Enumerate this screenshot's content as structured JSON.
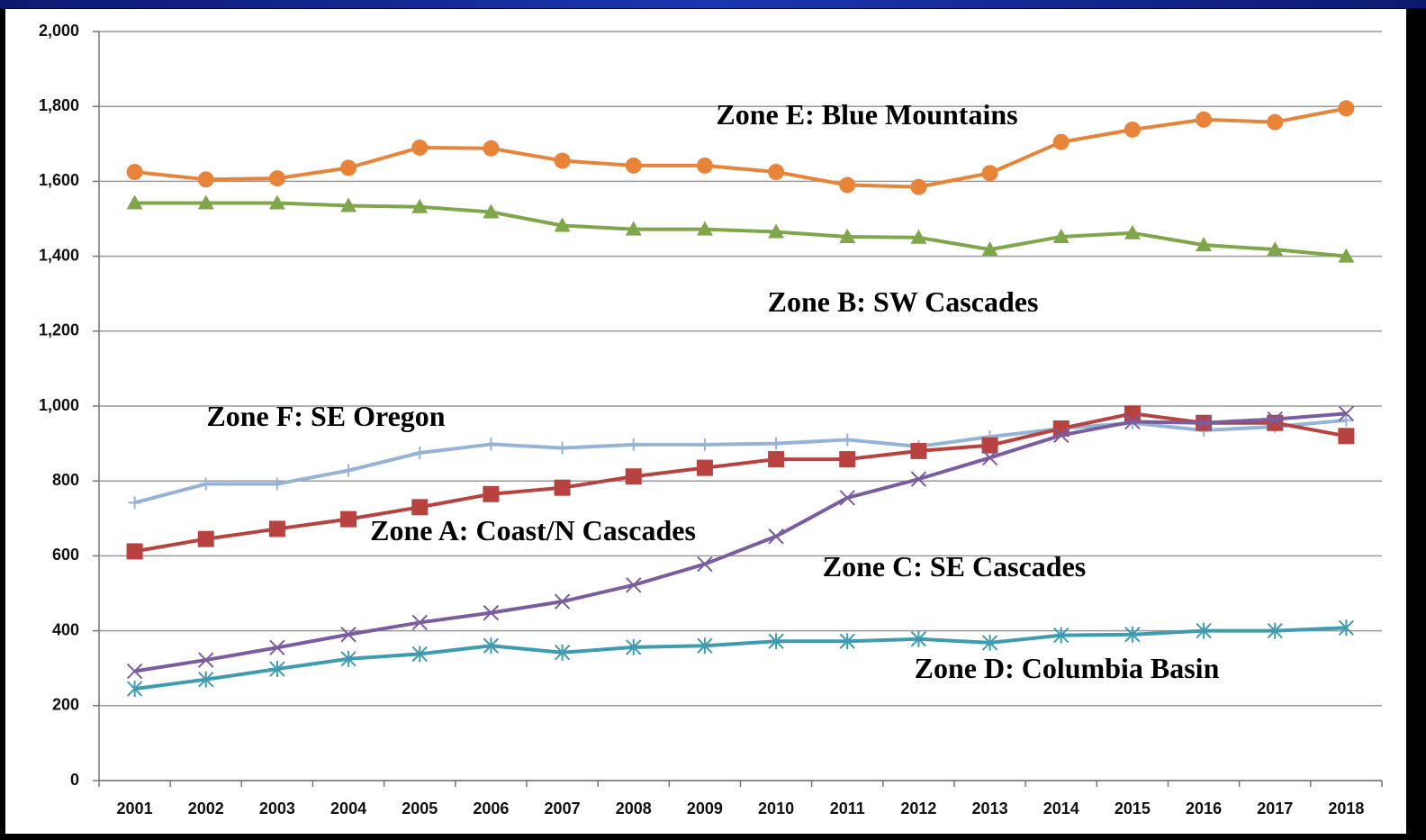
{
  "chart_data": {
    "type": "line",
    "categories": [
      "2001",
      "2002",
      "2003",
      "2004",
      "2005",
      "2006",
      "2007",
      "2008",
      "2009",
      "2010",
      "2011",
      "2012",
      "2013",
      "2014",
      "2015",
      "2016",
      "2017",
      "2018"
    ],
    "ylim": [
      0,
      2000
    ],
    "yticks": [
      0,
      200,
      400,
      600,
      800,
      {
        "value": 1000,
        "label": "1,000"
      },
      {
        "value": 1200,
        "label": "1,200"
      },
      {
        "value": 1400,
        "label": "1,400"
      },
      {
        "value": 1600,
        "label": "1,600"
      },
      {
        "value": 1800,
        "label": "1,800"
      },
      {
        "value": 2000,
        "label": "2,000"
      }
    ],
    "grid": true,
    "series": [
      {
        "name": "Zone E: Blue Mountains",
        "color": "#e8843a",
        "marker": "circle",
        "values": [
          1625,
          1605,
          1608,
          1636,
          1690,
          1688,
          1655,
          1642,
          1642,
          1625,
          1590,
          1585,
          1622,
          1705,
          1738,
          1765,
          1758,
          1795
        ]
      },
      {
        "name": "Zone B: SW Cascades",
        "color": "#7fa64a",
        "marker": "triangle",
        "values": [
          1542,
          1542,
          1542,
          1535,
          1532,
          1518,
          1482,
          1472,
          1472,
          1465,
          1452,
          1450,
          1418,
          1452,
          1462,
          1430,
          1418,
          1400
        ]
      },
      {
        "name": "Zone F: SE Oregon",
        "color": "#95b3d7",
        "marker": "plus",
        "values": [
          742,
          792,
          792,
          828,
          875,
          898,
          888,
          897,
          897,
          900,
          910,
          892,
          918,
          940,
          955,
          935,
          945,
          962
        ]
      },
      {
        "name": "Zone A: Coast/N Cascades",
        "color": "#b8423f",
        "marker": "square",
        "values": [
          612,
          645,
          672,
          698,
          730,
          765,
          782,
          812,
          835,
          858,
          858,
          880,
          895,
          940,
          980,
          955,
          955,
          920
        ]
      },
      {
        "name": "Zone C: SE Cascades",
        "color": "#7a5d9e",
        "marker": "x",
        "values": [
          292,
          322,
          355,
          390,
          422,
          448,
          478,
          522,
          578,
          652,
          755,
          805,
          862,
          922,
          958,
          955,
          965,
          980
        ]
      },
      {
        "name": "Zone D: Columbia Basin",
        "color": "#3f9cb0",
        "marker": "asterisk",
        "values": [
          245,
          270,
          298,
          325,
          338,
          360,
          342,
          356,
          360,
          372,
          372,
          378,
          368,
          388,
          390,
          400,
          400,
          408
        ]
      }
    ]
  }
}
